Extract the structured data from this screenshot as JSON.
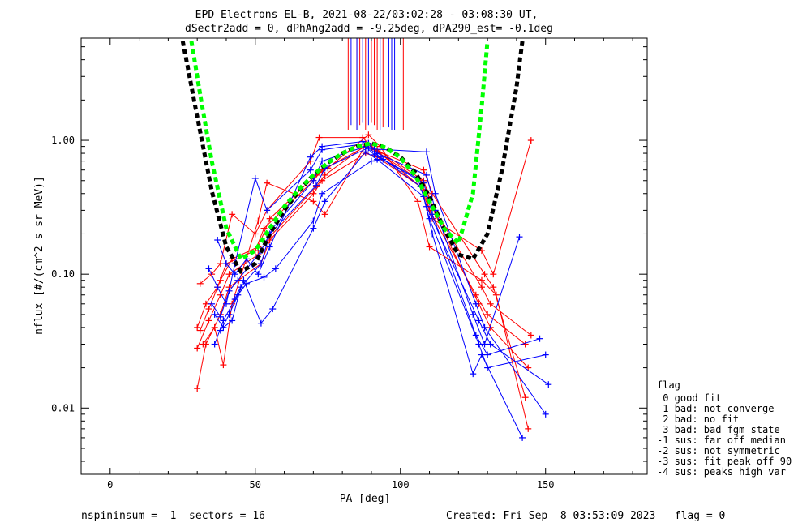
{
  "chart_data": {
    "type": "scatter",
    "title": "EPD Electrons EL-B, 2021-08-22/03:02:28 - 03:08:30 UT,",
    "subtitle": "dSectr2add = 0, dPhAng2add = -9.25deg, dPA290_est=  -0.1deg",
    "xlabel": "PA [deg]",
    "ylabel": "nflux [#/(cm^2 s sr MeV)]",
    "xlim": [
      -10,
      185
    ],
    "ylim": [
      0.0032,
      5.8
    ],
    "yscale": "log",
    "x_ticks": [
      0,
      50,
      100,
      150
    ],
    "y_ticks": [
      {
        "value": 0.01,
        "label": "0.01"
      },
      {
        "value": 0.1,
        "label": "0.10"
      },
      {
        "value": 1.0,
        "label": "1.00"
      }
    ],
    "grid": false,
    "colors": {
      "red": "#ff0000",
      "blue": "#0000ff",
      "black_fit": "#000000",
      "green_fit": "#00ff00"
    },
    "series": [
      {
        "color": "red",
        "x": [
          30,
          33,
          37,
          40,
          50,
          53,
          70,
          73,
          88,
          92,
          108,
          111,
          128,
          131,
          145
        ],
        "y": [
          0.04,
          0.06,
          0.08,
          0.12,
          0.15,
          0.22,
          0.5,
          0.6,
          0.9,
          0.85,
          0.5,
          0.32,
          0.08,
          0.06,
          0.035
        ]
      },
      {
        "color": "red",
        "x": [
          30,
          34,
          38,
          41,
          51,
          55,
          71,
          74,
          89,
          93,
          107,
          110,
          126,
          130,
          143
        ],
        "y": [
          0.028,
          0.045,
          0.07,
          0.1,
          0.14,
          0.19,
          0.45,
          0.55,
          0.95,
          0.8,
          0.45,
          0.3,
          0.07,
          0.05,
          0.03
        ]
      },
      {
        "color": "red",
        "x": [
          30,
          33,
          38,
          41,
          52,
          55,
          70,
          73,
          88,
          92,
          109,
          112,
          127,
          131,
          144
        ],
        "y": [
          0.014,
          0.03,
          0.05,
          0.08,
          0.12,
          0.18,
          0.4,
          0.5,
          0.8,
          0.75,
          0.42,
          0.28,
          0.06,
          0.04,
          0.02
        ]
      },
      {
        "color": "red",
        "x": [
          31,
          35,
          38,
          42,
          50,
          54,
          69,
          72,
          87,
          91,
          108,
          111,
          129,
          132,
          143
        ],
        "y": [
          0.085,
          0.1,
          0.12,
          0.28,
          0.2,
          0.3,
          0.7,
          1.05,
          1.05,
          0.85,
          0.6,
          0.4,
          0.1,
          0.08,
          0.012
        ]
      },
      {
        "color": "red",
        "x": [
          31,
          34,
          38,
          42,
          51,
          55,
          71,
          75,
          89,
          93,
          106,
          110,
          128,
          133,
          144
        ],
        "y": [
          0.038,
          0.055,
          0.09,
          0.13,
          0.16,
          0.26,
          0.55,
          0.62,
          1.1,
          0.9,
          0.35,
          0.16,
          0.09,
          0.07,
          0.007
        ]
      },
      {
        "color": "red",
        "x": [
          32,
          36,
          39,
          42,
          51,
          54,
          70,
          74,
          88,
          92,
          107,
          111,
          128,
          132,
          145
        ],
        "y": [
          0.03,
          0.04,
          0.021,
          0.06,
          0.25,
          0.48,
          0.35,
          0.28,
          0.92,
          0.82,
          0.5,
          0.26,
          0.15,
          0.1,
          1.0
        ]
      },
      {
        "color": "blue",
        "x": [
          34,
          37,
          40,
          43,
          50,
          54,
          69,
          73,
          89,
          92,
          109,
          112,
          125,
          129,
          141
        ],
        "y": [
          0.11,
          0.08,
          0.06,
          0.12,
          0.52,
          0.3,
          0.6,
          0.85,
          0.95,
          0.8,
          0.55,
          0.3,
          0.05,
          0.03,
          0.19
        ]
      },
      {
        "color": "blue",
        "x": [
          35,
          38,
          41,
          44,
          52,
          56,
          70,
          73,
          88,
          91,
          108,
          111,
          126,
          130,
          148
        ],
        "y": [
          0.06,
          0.048,
          0.075,
          0.09,
          0.15,
          0.22,
          0.5,
          0.7,
          0.9,
          0.78,
          0.48,
          0.28,
          0.035,
          0.025,
          0.033
        ]
      },
      {
        "color": "blue",
        "x": [
          36,
          39,
          42,
          45,
          52,
          55,
          71,
          74,
          89,
          93,
          107,
          110,
          127,
          130,
          150
        ],
        "y": [
          0.05,
          0.04,
          0.045,
          0.08,
          0.12,
          0.2,
          0.46,
          0.62,
          0.88,
          0.75,
          0.45,
          0.26,
          0.03,
          0.02,
          0.025
        ]
      },
      {
        "color": "blue",
        "x": [
          36,
          39,
          43,
          46,
          52,
          56,
          70,
          74,
          88,
          92,
          108,
          111,
          125,
          128,
          142
        ],
        "y": [
          0.03,
          0.045,
          0.065,
          0.09,
          0.043,
          0.055,
          0.22,
          0.35,
          0.82,
          0.72,
          0.38,
          0.2,
          0.018,
          0.025,
          0.006
        ]
      },
      {
        "color": "blue",
        "x": [
          37,
          40,
          43,
          47,
          51,
          55,
          69,
          73,
          87,
          91,
          109,
          112,
          126,
          129,
          150
        ],
        "y": [
          0.18,
          0.12,
          0.1,
          0.13,
          0.1,
          0.16,
          0.75,
          0.9,
          0.98,
          0.86,
          0.82,
          0.4,
          0.06,
          0.04,
          0.009
        ]
      },
      {
        "color": "blue",
        "x": [
          38,
          41,
          44,
          47,
          53,
          57,
          70,
          73,
          90,
          94,
          106,
          109,
          127,
          131,
          151
        ],
        "y": [
          0.038,
          0.05,
          0.07,
          0.085,
          0.095,
          0.11,
          0.25,
          0.4,
          0.7,
          0.72,
          0.52,
          0.32,
          0.045,
          0.03,
          0.015
        ]
      }
    ],
    "fit_curves": [
      {
        "color": "black_fit",
        "style": "dashed",
        "x": [
          25,
          30,
          35,
          40,
          45,
          50,
          55,
          60,
          65,
          70,
          75,
          80,
          85,
          90,
          95,
          100,
          105,
          110,
          115,
          120,
          125,
          130,
          135,
          140,
          142
        ],
        "y": [
          5.5,
          1.5,
          0.42,
          0.16,
          0.105,
          0.12,
          0.2,
          0.3,
          0.42,
          0.55,
          0.68,
          0.8,
          0.9,
          0.95,
          0.88,
          0.75,
          0.58,
          0.38,
          0.22,
          0.14,
          0.13,
          0.2,
          0.6,
          2.5,
          5.5
        ]
      },
      {
        "color": "green_fit",
        "style": "dashed",
        "x": [
          28,
          31,
          35,
          40,
          45,
          50,
          55,
          60,
          65,
          70,
          75,
          80,
          85,
          90,
          95,
          100,
          105,
          110,
          115,
          120,
          125,
          128,
          130
        ],
        "y": [
          5.5,
          2.2,
          0.7,
          0.22,
          0.13,
          0.15,
          0.22,
          0.32,
          0.43,
          0.55,
          0.68,
          0.8,
          0.9,
          0.95,
          0.88,
          0.74,
          0.55,
          0.35,
          0.22,
          0.17,
          0.4,
          1.8,
          5.5
        ]
      }
    ],
    "vertical_lines": {
      "red_x": [
        82,
        84,
        85,
        86,
        88,
        90,
        91,
        92,
        94,
        101
      ],
      "blue_x": [
        83,
        85,
        87,
        89,
        93,
        96,
        97,
        98
      ],
      "y_bottom": [
        1.2,
        1.25,
        1.2,
        1.3,
        1.2,
        1.35,
        1.3,
        1.2,
        1.25,
        1.2
      ]
    },
    "legend": {
      "position": "right",
      "header": "flag",
      "entries": [
        " 0 good fit",
        " 1 bad: not converge",
        " 2 bad: no fit",
        " 3 bad: bad fgm state",
        "-1 sus: far off median",
        "-2 sus: not symmetric",
        "-3 sus: fit peak off 90",
        "-4 sus: peaks high var"
      ]
    }
  },
  "footer": {
    "left": "nspininsum =  1  sectors = 16",
    "right": "Created: Fri Sep  8 03:53:09 2023   flag = 0"
  }
}
